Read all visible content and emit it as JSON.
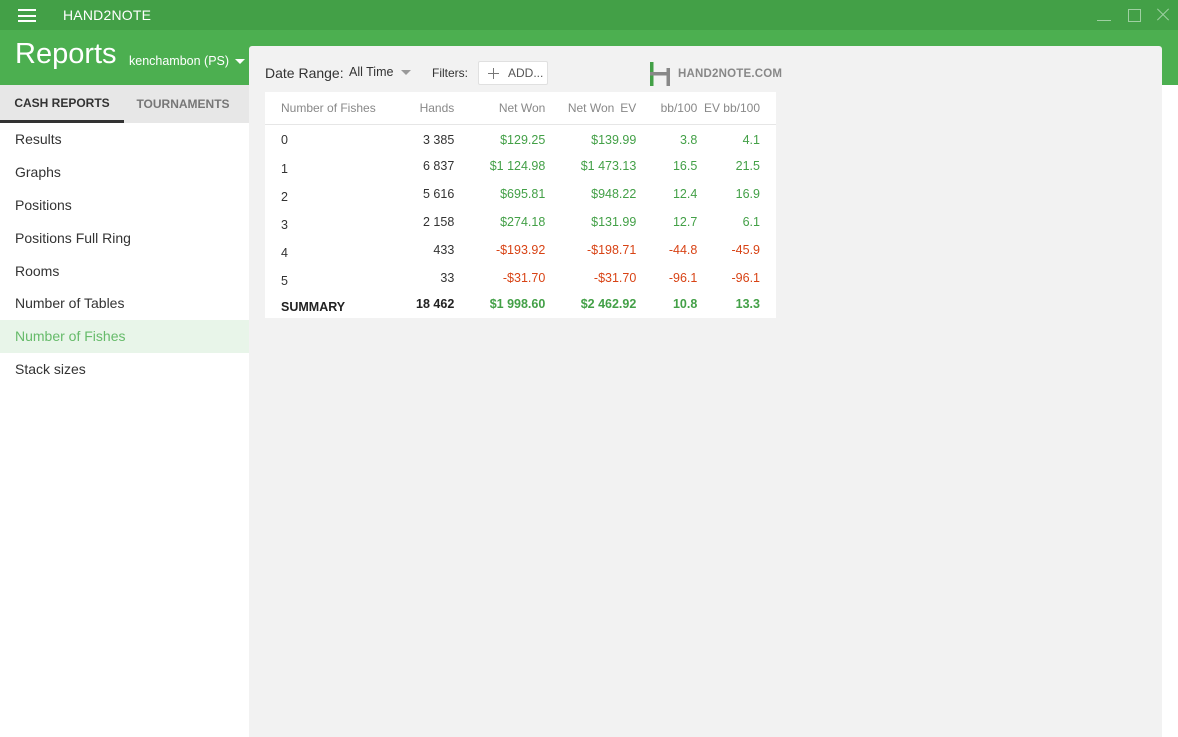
{
  "app": {
    "title": "HAND2NOTE"
  },
  "header": {
    "title": "Reports",
    "account": "kenchambon (PS)"
  },
  "tabs": [
    {
      "label": "CASH REPORTS",
      "active": true
    },
    {
      "label": "TOURNAMENTS",
      "active": false
    }
  ],
  "nav": [
    {
      "label": "Results",
      "active": false
    },
    {
      "label": "Graphs",
      "active": false
    },
    {
      "label": "Positions",
      "active": false
    },
    {
      "label": "Positions Full Ring",
      "active": false
    },
    {
      "label": "Rooms",
      "active": false
    },
    {
      "label": "Number of Tables",
      "active": false
    },
    {
      "label": "Number of Fishes",
      "active": true
    },
    {
      "label": "Stack sizes",
      "active": false
    }
  ],
  "toolbar": {
    "date_range_label": "Date Range:",
    "date_range_value": "All Time",
    "filters_label": "Filters:",
    "add_label": "ADD...",
    "logo_text": "HAND2NOTE.COM"
  },
  "table": {
    "headers": {
      "fishes": "Number of Fishes",
      "hands": "Hands",
      "net_won": "Net Won",
      "net_won_ev_a": "Net Won",
      "net_won_ev_b": "EV",
      "bb100": "bb/100",
      "ev_bb100": "EV bb/100"
    },
    "rows": [
      {
        "fishes": "0",
        "hands": "3 385",
        "net_won": "$129.25",
        "net_won_ev": "$139.99",
        "bb100": "3.8",
        "ev_bb100": "4.1",
        "sign": "pos"
      },
      {
        "fishes": "1",
        "hands": "6 837",
        "net_won": "$1 124.98",
        "net_won_ev": "$1 473.13",
        "bb100": "16.5",
        "ev_bb100": "21.5",
        "sign": "pos"
      },
      {
        "fishes": "2",
        "hands": "5 616",
        "net_won": "$695.81",
        "net_won_ev": "$948.22",
        "bb100": "12.4",
        "ev_bb100": "16.9",
        "sign": "pos"
      },
      {
        "fishes": "3",
        "hands": "2 158",
        "net_won": "$274.18",
        "net_won_ev": "$131.99",
        "bb100": "12.7",
        "ev_bb100": "6.1",
        "sign": "pos"
      },
      {
        "fishes": "4",
        "hands": "433",
        "net_won": "-$193.92",
        "net_won_ev": "-$198.71",
        "bb100": "-44.8",
        "ev_bb100": "-45.9",
        "sign": "neg"
      },
      {
        "fishes": "5",
        "hands": "33",
        "net_won": "-$31.70",
        "net_won_ev": "-$31.70",
        "bb100": "-96.1",
        "ev_bb100": "-96.1",
        "sign": "neg"
      }
    ],
    "summary": {
      "label": "SUMMARY",
      "hands": "18 462",
      "net_won": "$1 998.60",
      "net_won_ev": "$2 462.92",
      "bb100": "10.8",
      "ev_bb100": "13.3"
    }
  },
  "colors": {
    "title_bar": "#43a047",
    "header": "#4caf50",
    "positive": "#43a047",
    "negative": "#d84315",
    "active_nav_text": "#66bb6a"
  }
}
